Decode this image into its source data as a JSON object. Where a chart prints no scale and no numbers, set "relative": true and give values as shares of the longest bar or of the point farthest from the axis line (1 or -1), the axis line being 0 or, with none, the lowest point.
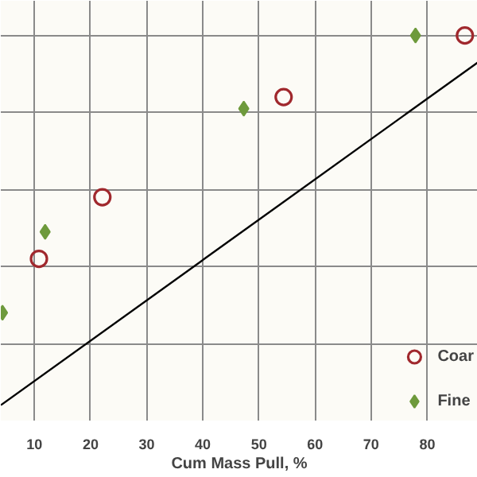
{
  "chart_data": {
    "type": "scatter",
    "xlabel": "Cum Mass Pull, %",
    "relative": true,
    "xlim": [
      4,
      89
    ],
    "xticks": [
      10,
      20,
      30,
      40,
      50,
      60,
      70,
      80
    ],
    "grid": true,
    "legend": "bottom right",
    "tick_labels": "x",
    "series": [
      {
        "name": "Coar",
        "color": "#a0282d",
        "marker": "circle",
        "x": [
          10.8,
          22.1,
          54.4,
          86.7
        ],
        "values": [
          0.42,
          0.58,
          0.84,
          1
        ]
      },
      {
        "name": "Fine",
        "color": "#6e9a3c",
        "marker": "diamond",
        "x": [
          4.3,
          11.9,
          47.3,
          77.9
        ],
        "values": [
          0.28,
          0.49,
          0.81,
          1
        ]
      },
      {
        "type": "line",
        "color": "#000000",
        "x": [
          4,
          89
        ],
        "values": [
          0.04,
          0.93
        ]
      }
    ]
  }
}
